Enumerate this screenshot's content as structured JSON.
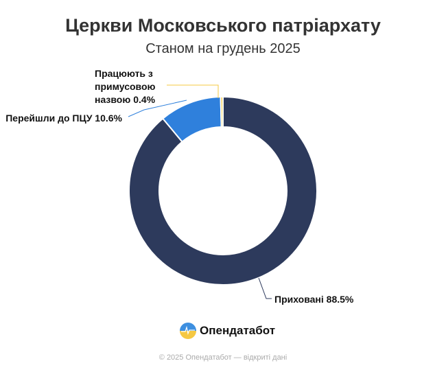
{
  "chart_data": {
    "type": "pie",
    "title": "Церкви Московського патріархату",
    "subtitle": "Станом на грудень 2025",
    "slices": [
      {
        "label": "Приховані 88.5%",
        "value": 88.5,
        "color": "#2d3a5c"
      },
      {
        "label": "Перейшли до ПЦУ 10.6%",
        "value": 10.6,
        "color": "#2f80dc"
      },
      {
        "label": "Працюють з примусовою назвою 0.4%",
        "label_lines": [
          "Працюють з",
          "примусовою",
          "назвою 0.4%"
        ],
        "value": 0.4,
        "color": "#f5c842"
      }
    ],
    "donut": true
  },
  "brand": {
    "name": "Опендатабот"
  },
  "footer": "© 2025 Опендатабот — відкриті дані"
}
